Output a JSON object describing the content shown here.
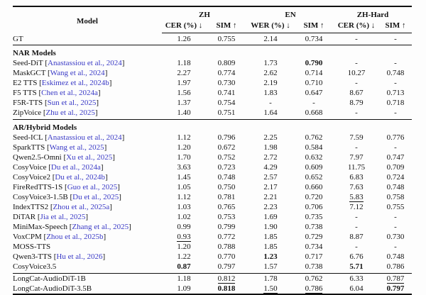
{
  "table": {
    "header": {
      "model": "Model",
      "groups": [
        {
          "label": "ZH",
          "sub": [
            "CER (%) ↓",
            "SIM ↑"
          ]
        },
        {
          "label": "EN",
          "sub": [
            "WER (%) ↓",
            "SIM ↑"
          ]
        },
        {
          "label": "ZH-Hard",
          "sub": [
            "CER (%) ↓",
            "SIM ↑"
          ]
        }
      ]
    },
    "colors": {
      "citation": "#3a3ac6",
      "text": "#121212",
      "rule": "#111111"
    },
    "legend_note": {
      "bold_means": "best",
      "underline_means": "second best"
    },
    "sections": [
      {
        "label": null,
        "rows": [
          {
            "model": "GT",
            "cite": null,
            "vals": [
              "1.26",
              "0.755",
              "2.14",
              "0.734",
              "-",
              "-"
            ],
            "styles": [
              "",
              "",
              "",
              "",
              "",
              ""
            ]
          }
        ]
      },
      {
        "label": "NAR Models",
        "rows": [
          {
            "model": "Seed-DiT",
            "cite": "Anastassiou et al., 2024",
            "vals": [
              "1.18",
              "0.809",
              "1.73",
              "0.790",
              "-",
              "-"
            ],
            "styles": [
              "",
              "",
              "",
              "b",
              "",
              ""
            ]
          },
          {
            "model": "MaskGCT",
            "cite": "Wang et al., 2024",
            "vals": [
              "2.27",
              "0.774",
              "2.62",
              "0.714",
              "10.27",
              "0.748"
            ],
            "styles": [
              "",
              "",
              "",
              "",
              "",
              ""
            ]
          },
          {
            "model": "E2 TTS",
            "cite": "Eskimez et al., 2024b",
            "vals": [
              "1.97",
              "0.730",
              "2.19",
              "0.710",
              "-",
              "-"
            ],
            "styles": [
              "",
              "",
              "",
              "",
              "",
              ""
            ]
          },
          {
            "model": "F5 TTS",
            "cite": "Chen et al., 2024a",
            "vals": [
              "1.56",
              "0.741",
              "1.83",
              "0.647",
              "8.67",
              "0.713"
            ],
            "styles": [
              "",
              "",
              "",
              "",
              "",
              ""
            ]
          },
          {
            "model": "F5R-TTS",
            "cite": "Sun et al., 2025",
            "vals": [
              "1.37",
              "0.754",
              "-",
              "-",
              "8.79",
              "0.718"
            ],
            "styles": [
              "",
              "",
              "",
              "",
              "",
              ""
            ]
          },
          {
            "model": "ZipVoice",
            "cite": "Zhu et al., 2025",
            "vals": [
              "1.40",
              "0.751",
              "1.64",
              "0.668",
              "-",
              "-"
            ],
            "styles": [
              "",
              "",
              "",
              "",
              "",
              ""
            ]
          }
        ]
      },
      {
        "label": "AR/Hybrid Models",
        "rows": [
          {
            "model": "Seed-ICL",
            "cite": "Anastassiou et al., 2024",
            "vals": [
              "1.12",
              "0.796",
              "2.25",
              "0.762",
              "7.59",
              "0.776"
            ],
            "styles": [
              "",
              "",
              "",
              "",
              "",
              ""
            ]
          },
          {
            "model": "SparkTTS",
            "cite": "Wang et al., 2025",
            "vals": [
              "1.20",
              "0.672",
              "1.98",
              "0.584",
              "-",
              "-"
            ],
            "styles": [
              "",
              "",
              "",
              "",
              "",
              ""
            ]
          },
          {
            "model": "Qwen2.5-Omni",
            "cite": "Xu et al., 2025",
            "vals": [
              "1.70",
              "0.752",
              "2.72",
              "0.632",
              "7.97",
              "0.747"
            ],
            "styles": [
              "",
              "",
              "",
              "",
              "",
              ""
            ]
          },
          {
            "model": "CosyVoice",
            "cite": "Du et al., 2024a",
            "vals": [
              "3.63",
              "0.723",
              "4.29",
              "0.609",
              "11.75",
              "0.709"
            ],
            "styles": [
              "",
              "",
              "",
              "",
              "",
              ""
            ]
          },
          {
            "model": "CosyVoice2",
            "cite": "Du et al., 2024b",
            "vals": [
              "1.45",
              "0.748",
              "2.57",
              "0.652",
              "6.83",
              "0.724"
            ],
            "styles": [
              "",
              "",
              "",
              "",
              "",
              ""
            ]
          },
          {
            "model": "FireRedTTS-1S",
            "cite": "Guo et al., 2025",
            "vals": [
              "1.05",
              "0.750",
              "2.17",
              "0.660",
              "7.63",
              "0.748"
            ],
            "styles": [
              "",
              "",
              "",
              "",
              "",
              ""
            ]
          },
          {
            "model": "CosyVoice3-1.5B",
            "cite": "Du et al., 2025",
            "vals": [
              "1.12",
              "0.781",
              "2.21",
              "0.720",
              "5.83",
              "0.758"
            ],
            "styles": [
              "",
              "",
              "",
              "",
              "u",
              ""
            ]
          },
          {
            "model": "IndexTTS2",
            "cite": "Zhou et al., 2025a",
            "vals": [
              "1.03",
              "0.765",
              "2.23",
              "0.706",
              "7.12",
              "0.755"
            ],
            "styles": [
              "",
              "",
              "",
              "",
              "",
              ""
            ]
          },
          {
            "model": "DiTAR",
            "cite": "Jia et al., 2025",
            "vals": [
              "1.02",
              "0.753",
              "1.69",
              "0.735",
              "-",
              "-"
            ],
            "styles": [
              "",
              "",
              "",
              "",
              "",
              ""
            ]
          },
          {
            "model": "MiniMax-Speech",
            "cite": "Zhang et al., 2025",
            "vals": [
              "0.99",
              "0.799",
              "1.90",
              "0.738",
              "-",
              "-"
            ],
            "styles": [
              "",
              "",
              "",
              "",
              "",
              ""
            ]
          },
          {
            "model": "VoxCPM",
            "cite": "Zhou et al., 2025b",
            "vals": [
              "0.93",
              "0.772",
              "1.85",
              "0.729",
              "8.87",
              "0.730"
            ],
            "styles": [
              "u",
              "",
              "",
              "",
              "",
              ""
            ]
          },
          {
            "model": "MOSS-TTS",
            "cite": null,
            "vals": [
              "1.20",
              "0.788",
              "1.85",
              "0.734",
              "-",
              "-"
            ],
            "styles": [
              "",
              "",
              "",
              "",
              "",
              ""
            ]
          },
          {
            "model": "Qwen3-TTS",
            "cite": "Hu et al., 2026",
            "vals": [
              "1.22",
              "0.770",
              "1.23",
              "0.717",
              "6.76",
              "0.748"
            ],
            "styles": [
              "",
              "",
              "b",
              "",
              "",
              ""
            ]
          },
          {
            "model": "CosyVoice3.5",
            "cite": null,
            "vals": [
              "0.87",
              "0.797",
              "1.57",
              "0.738",
              "5.71",
              "0.786"
            ],
            "styles": [
              "b",
              "",
              "",
              "",
              "b",
              ""
            ]
          }
        ]
      },
      {
        "label": null,
        "rows": [
          {
            "model": "LongCat-AudioDiT-1B",
            "cite": null,
            "vals": [
              "1.18",
              "0.812",
              "1.78",
              "0.762",
              "6.33",
              "0.787"
            ],
            "styles": [
              "",
              "u",
              "",
              "",
              "",
              "u"
            ]
          },
          {
            "model": "LongCat-AudioDiT-3.5B",
            "cite": null,
            "vals": [
              "1.09",
              "0.818",
              "1.50",
              "0.786",
              "6.04",
              "0.797"
            ],
            "styles": [
              "",
              "b",
              "u",
              "u",
              "",
              "b"
            ]
          }
        ]
      }
    ]
  }
}
